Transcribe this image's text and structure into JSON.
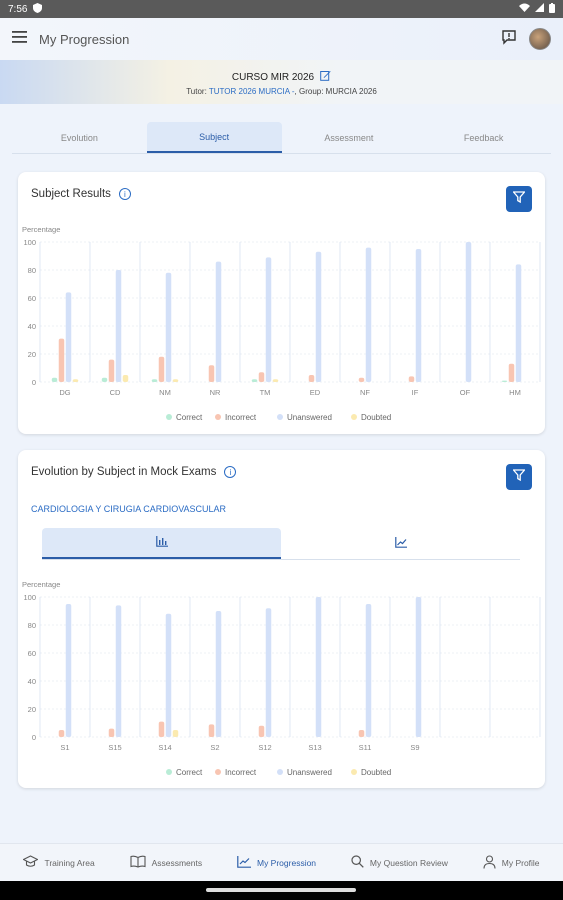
{
  "status_bar": {
    "time": "7:56"
  },
  "app_bar": {
    "title": "My Progression"
  },
  "course": {
    "title": "CURSO MIR 2026",
    "tutor_prefix": "Tutor: ",
    "tutor": "TUTOR 2026 MURCIA -",
    "group_prefix": ", Group: ",
    "group": "MURCIA 2026"
  },
  "tabs": [
    "Evolution",
    "Subject",
    "Assessment",
    "Feedback"
  ],
  "active_tab": 1,
  "subject_results": {
    "title": "Subject Results",
    "ylabel": "Percentage",
    "legend": [
      "Correct",
      "Incorrect",
      "Unanswered",
      "Doubted"
    ]
  },
  "evolution_by_subject": {
    "title": "Evolution by Subject in Mock Exams",
    "subject": "CARDIOLOGIA Y CIRUGIA CARDIOVASCULAR",
    "ylabel": "Percentage",
    "legend": [
      "Correct",
      "Incorrect",
      "Unanswered",
      "Doubted"
    ]
  },
  "chart_data": [
    {
      "type": "bar",
      "title": "Subject Results",
      "ylabel": "Percentage",
      "ylim": [
        0,
        100
      ],
      "yticks": [
        0,
        20,
        40,
        60,
        80,
        100
      ],
      "categories": [
        "DG",
        "CD",
        "NM",
        "NR",
        "TM",
        "ED",
        "NF",
        "IF",
        "OF",
        "HM"
      ],
      "series": [
        {
          "name": "Correct",
          "color": "#b9ecd6",
          "values": [
            3,
            3,
            2,
            0,
            2,
            0,
            0,
            0,
            0,
            1
          ]
        },
        {
          "name": "Incorrect",
          "color": "#f8c5b2",
          "values": [
            31,
            16,
            18,
            12,
            7,
            5,
            3,
            4,
            0,
            13
          ]
        },
        {
          "name": "Unanswered",
          "color": "#d3e0f8",
          "values": [
            64,
            80,
            78,
            86,
            89,
            93,
            96,
            95,
            100,
            84
          ]
        },
        {
          "name": "Doubted",
          "color": "#fbeab0",
          "values": [
            2,
            5,
            2,
            0,
            2,
            0,
            0,
            0,
            0,
            0
          ]
        }
      ]
    },
    {
      "type": "bar",
      "title": "Evolution by Subject in Mock Exams",
      "ylabel": "Percentage",
      "ylim": [
        0,
        100
      ],
      "yticks": [
        0,
        20,
        40,
        60,
        80,
        100
      ],
      "categories": [
        "S1",
        "S15",
        "S14",
        "S2",
        "S12",
        "S13",
        "S11",
        "S9"
      ],
      "series": [
        {
          "name": "Correct",
          "color": "#b9ecd6",
          "values": [
            0,
            0,
            0,
            0,
            0,
            0,
            0,
            0
          ]
        },
        {
          "name": "Incorrect",
          "color": "#f8c5b2",
          "values": [
            5,
            6,
            11,
            9,
            8,
            0,
            5,
            0
          ]
        },
        {
          "name": "Unanswered",
          "color": "#d3e0f8",
          "values": [
            95,
            94,
            88,
            90,
            92,
            100,
            95,
            100
          ]
        },
        {
          "name": "Doubted",
          "color": "#fbeab0",
          "values": [
            0,
            0,
            5,
            0,
            0,
            0,
            0,
            0
          ]
        }
      ]
    }
  ],
  "bottom_nav": [
    {
      "label": "Training Area",
      "icon": "graduation-cap-icon"
    },
    {
      "label": "Assessments",
      "icon": "book-icon"
    },
    {
      "label": "My Progression",
      "icon": "trend-icon"
    },
    {
      "label": "My Question Review",
      "icon": "search-icon"
    },
    {
      "label": "My Profile",
      "icon": "person-icon"
    }
  ],
  "active_nav": 2,
  "colors": {
    "accent": "#2163b8",
    "link": "#2b6cc4"
  }
}
